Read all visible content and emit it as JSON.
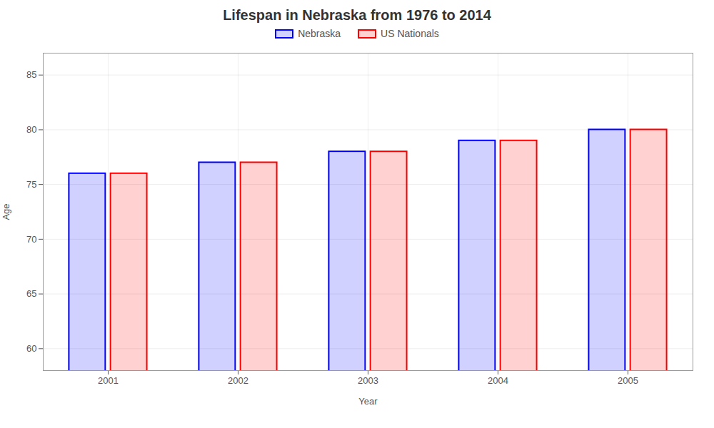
{
  "chart_data": {
    "type": "bar",
    "title": "Lifespan in Nebraska from 1976 to 2014",
    "xlabel": "Year",
    "ylabel": "Age",
    "categories": [
      "2001",
      "2002",
      "2003",
      "2004",
      "2005"
    ],
    "series": [
      {
        "name": "Nebraska",
        "color": "#0000ff",
        "values": [
          76,
          77,
          78,
          79,
          80
        ]
      },
      {
        "name": "US Nationals",
        "color": "#ff0000",
        "values": [
          76,
          77,
          78,
          79,
          80
        ]
      }
    ],
    "ylim": [
      58,
      87
    ],
    "yticks": [
      60,
      65,
      70,
      75,
      80,
      85
    ],
    "grid": true,
    "legend": "top"
  }
}
